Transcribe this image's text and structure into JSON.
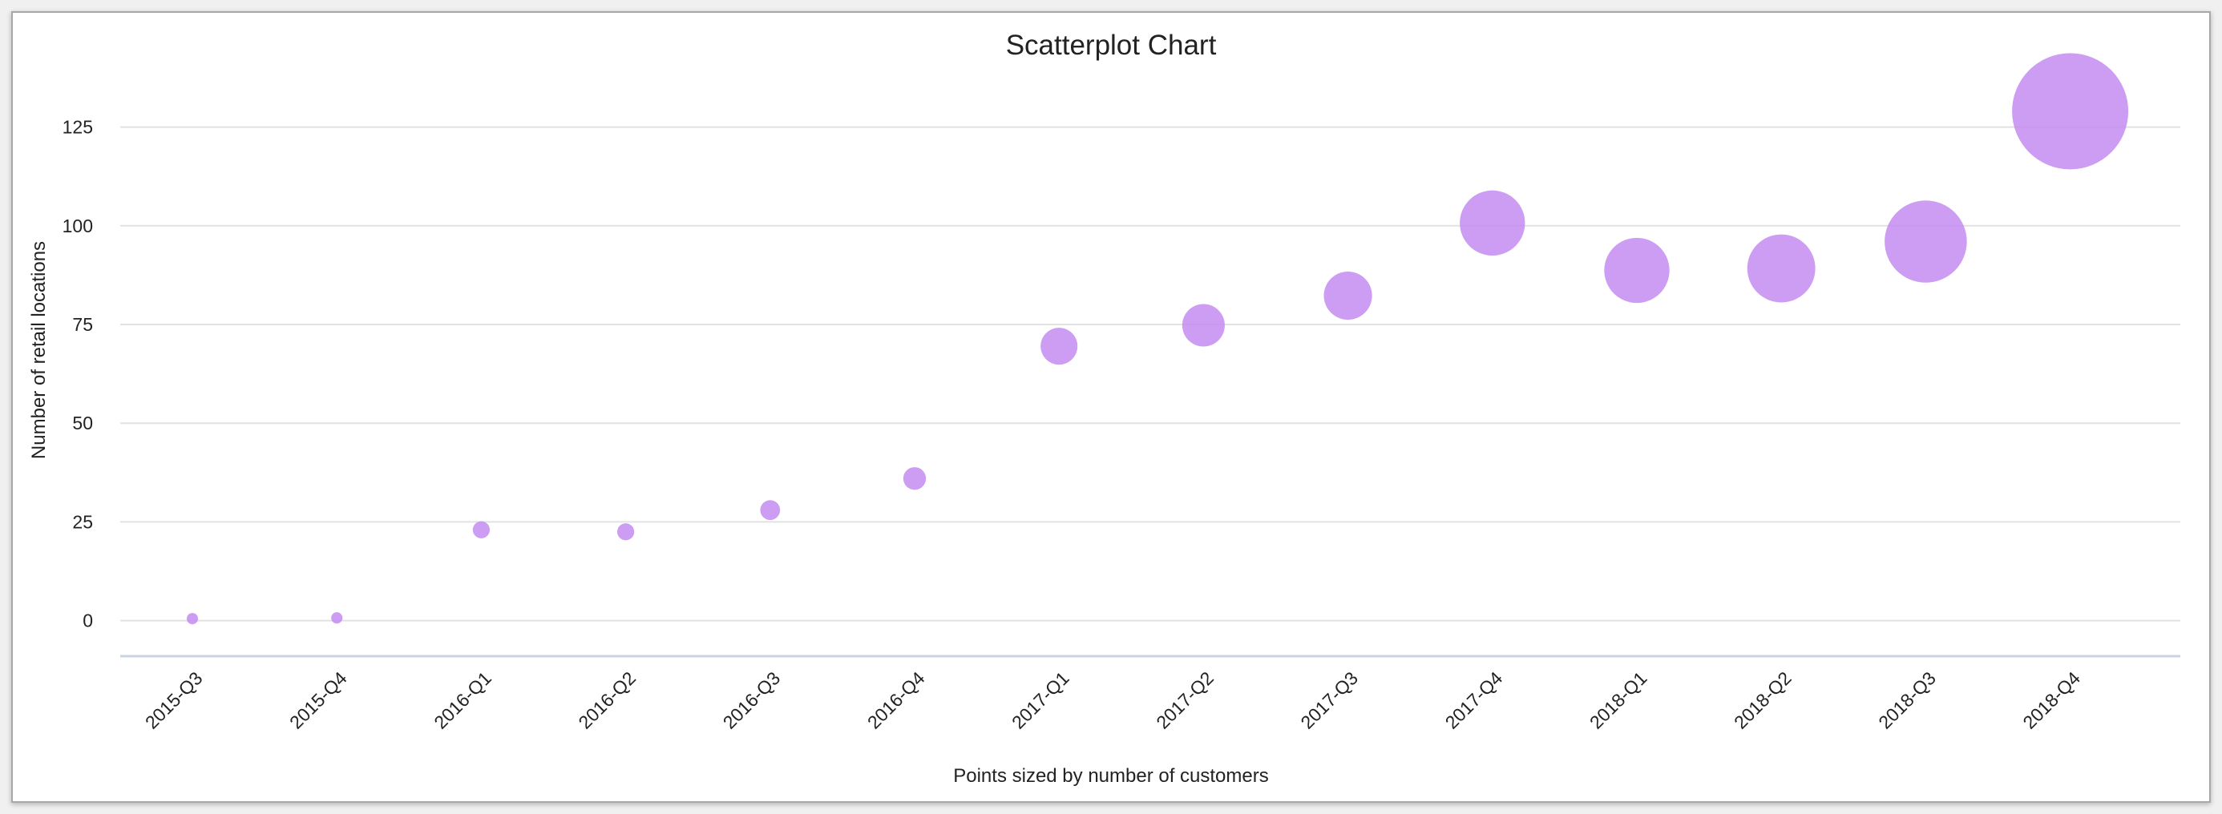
{
  "chart_data": {
    "type": "scatter",
    "title": "Scatterplot Chart",
    "xlabel": "Points sized by number of customers",
    "ylabel": "Number of retail locations",
    "ylim": [
      -9,
      145
    ],
    "yticks": [
      0,
      25,
      50,
      75,
      100,
      125
    ],
    "grid": true,
    "legend": "none",
    "color": "#c38cf0",
    "categories": [
      "2015-Q3",
      "2015-Q4",
      "2016-Q1",
      "2016-Q2",
      "2016-Q3",
      "2016-Q4",
      "2017-Q1",
      "2017-Q2",
      "2017-Q3",
      "2017-Q4",
      "2018-Q1",
      "2018-Q2",
      "2018-Q3",
      "2018-Q4"
    ],
    "values": [
      0.5,
      0.7,
      23,
      22.5,
      28,
      36,
      69.5,
      74.8,
      82.3,
      100.7,
      88.7,
      89.2,
      96,
      129
    ],
    "relative_sizes": [
      16,
      16,
      36,
      36,
      49,
      64,
      169,
      225,
      289,
      529,
      529,
      576,
      841,
      1681
    ]
  }
}
